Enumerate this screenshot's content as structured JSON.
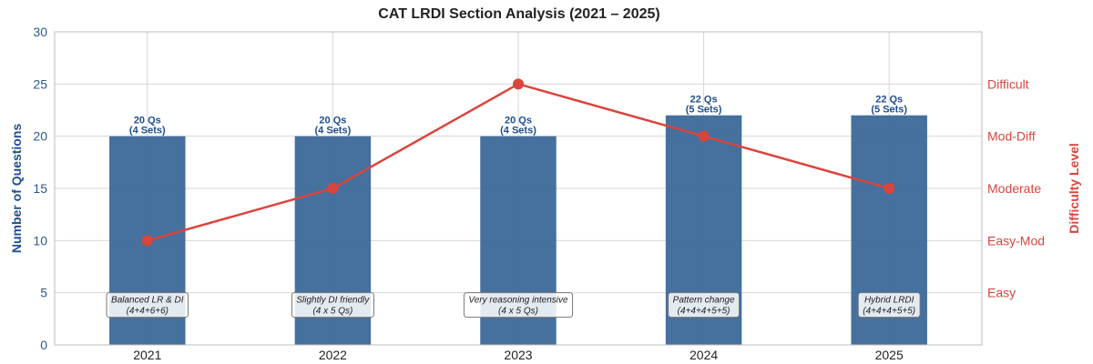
{
  "chart_data": {
    "type": "bar",
    "title": "CAT LRDI Section Analysis (2021 – 2025)",
    "categories": [
      "2021",
      "2022",
      "2023",
      "2024",
      "2025"
    ],
    "ylabel": "Number of Questions",
    "ylim": [
      0,
      30
    ],
    "yticks": [
      "0",
      "5",
      "10",
      "15",
      "20",
      "25",
      "30"
    ],
    "y2label": "Difficulty Level",
    "y2_ticks": [
      "Easy",
      "Easy-Mod",
      "Moderate",
      "Mod-Diff",
      "Difficult"
    ],
    "grid": true,
    "series": [
      {
        "kind": "bar",
        "values": [
          20,
          20,
          20,
          22,
          22
        ],
        "color": "#3c6898",
        "data_labels": [
          [
            "20 Qs",
            "(4 Sets)"
          ],
          [
            "20 Qs",
            "(4 Sets)"
          ],
          [
            "20 Qs",
            "(4 Sets)"
          ],
          [
            "22 Qs",
            "(5 Sets)"
          ],
          [
            "22 Qs",
            "(5 Sets)"
          ]
        ]
      },
      {
        "kind": "line",
        "axis": "right",
        "values": [
          10,
          15,
          25,
          20,
          15
        ],
        "levels": [
          "Easy-Mod",
          "Moderate",
          "Difficult",
          "Mod-Diff",
          "Moderate"
        ],
        "color": "#d9453d"
      }
    ],
    "annotations": [
      [
        "Balanced LR & DI",
        "(4+4+6+6)"
      ],
      [
        "Slightly DI friendly",
        "(4 x 5 Qs)"
      ],
      [
        "Very reasoning intensive",
        "(4 x 5 Qs)"
      ],
      [
        "Pattern change",
        "(4+4+4+5+5)"
      ],
      [
        "Hybrid LRDI",
        "(4+4+4+5+5)"
      ]
    ]
  }
}
